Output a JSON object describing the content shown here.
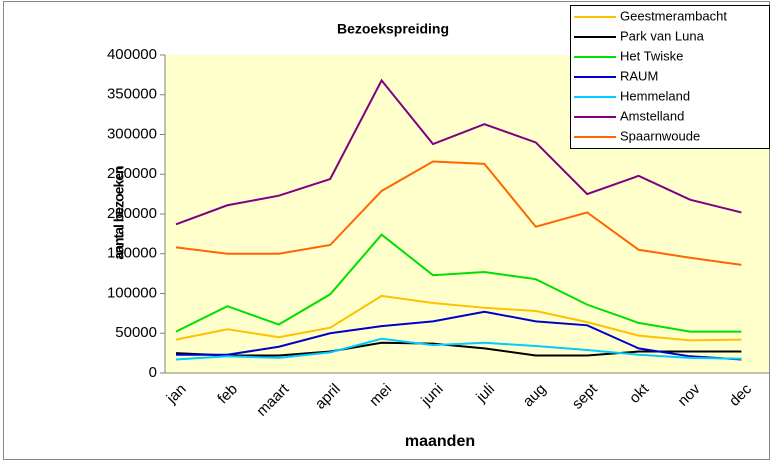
{
  "chart_data": {
    "type": "line",
    "title": "Bezoekspreiding",
    "x_label": "maanden",
    "y_label": "aantal bezoeken",
    "categories": [
      "jan",
      "feb",
      "maart",
      "april",
      "mei",
      "juni",
      "juli",
      "aug",
      "sept",
      "okt",
      "nov",
      "dec"
    ],
    "series": [
      {
        "name": "Geestmerambacht",
        "color": "#ffc000",
        "values": [
          42000,
          55000,
          45000,
          57000,
          97000,
          88000,
          82000,
          78000,
          64000,
          47000,
          41000,
          42000
        ]
      },
      {
        "name": "Park van Luna",
        "color": "#000000",
        "values": [
          25000,
          22000,
          22000,
          27000,
          38000,
          37000,
          31000,
          22000,
          22000,
          27000,
          27000,
          27000
        ]
      },
      {
        "name": "Het Twiske",
        "color": "#00e000",
        "values": [
          52000,
          84000,
          61000,
          99000,
          174000,
          123000,
          127000,
          118000,
          86000,
          63000,
          52000,
          52000
        ]
      },
      {
        "name": "RAUM",
        "color": "#0000cc",
        "values": [
          23000,
          23000,
          33000,
          50000,
          59000,
          65000,
          77000,
          65000,
          60000,
          31000,
          21000,
          17000
        ]
      },
      {
        "name": "Hemmeland",
        "color": "#00ccff",
        "values": [
          17000,
          21000,
          19000,
          26000,
          43000,
          35000,
          38000,
          34000,
          29000,
          23000,
          19000,
          18000
        ]
      },
      {
        "name": "Amstelland",
        "color": "#800080",
        "values": [
          187000,
          211000,
          223000,
          244000,
          368000,
          288000,
          313000,
          290000,
          225000,
          248000,
          218000,
          202000
        ]
      },
      {
        "name": "Spaarnwoude",
        "color": "#ff6600",
        "values": [
          158000,
          150000,
          150000,
          161000,
          229000,
          266000,
          263000,
          184000,
          202000,
          155000,
          145000,
          136000
        ]
      }
    ],
    "ylim": [
      0,
      400000
    ],
    "yticks": [
      0,
      50000,
      100000,
      150000,
      200000,
      250000,
      300000,
      350000,
      400000
    ],
    "grid": false,
    "legend": "top-right"
  }
}
